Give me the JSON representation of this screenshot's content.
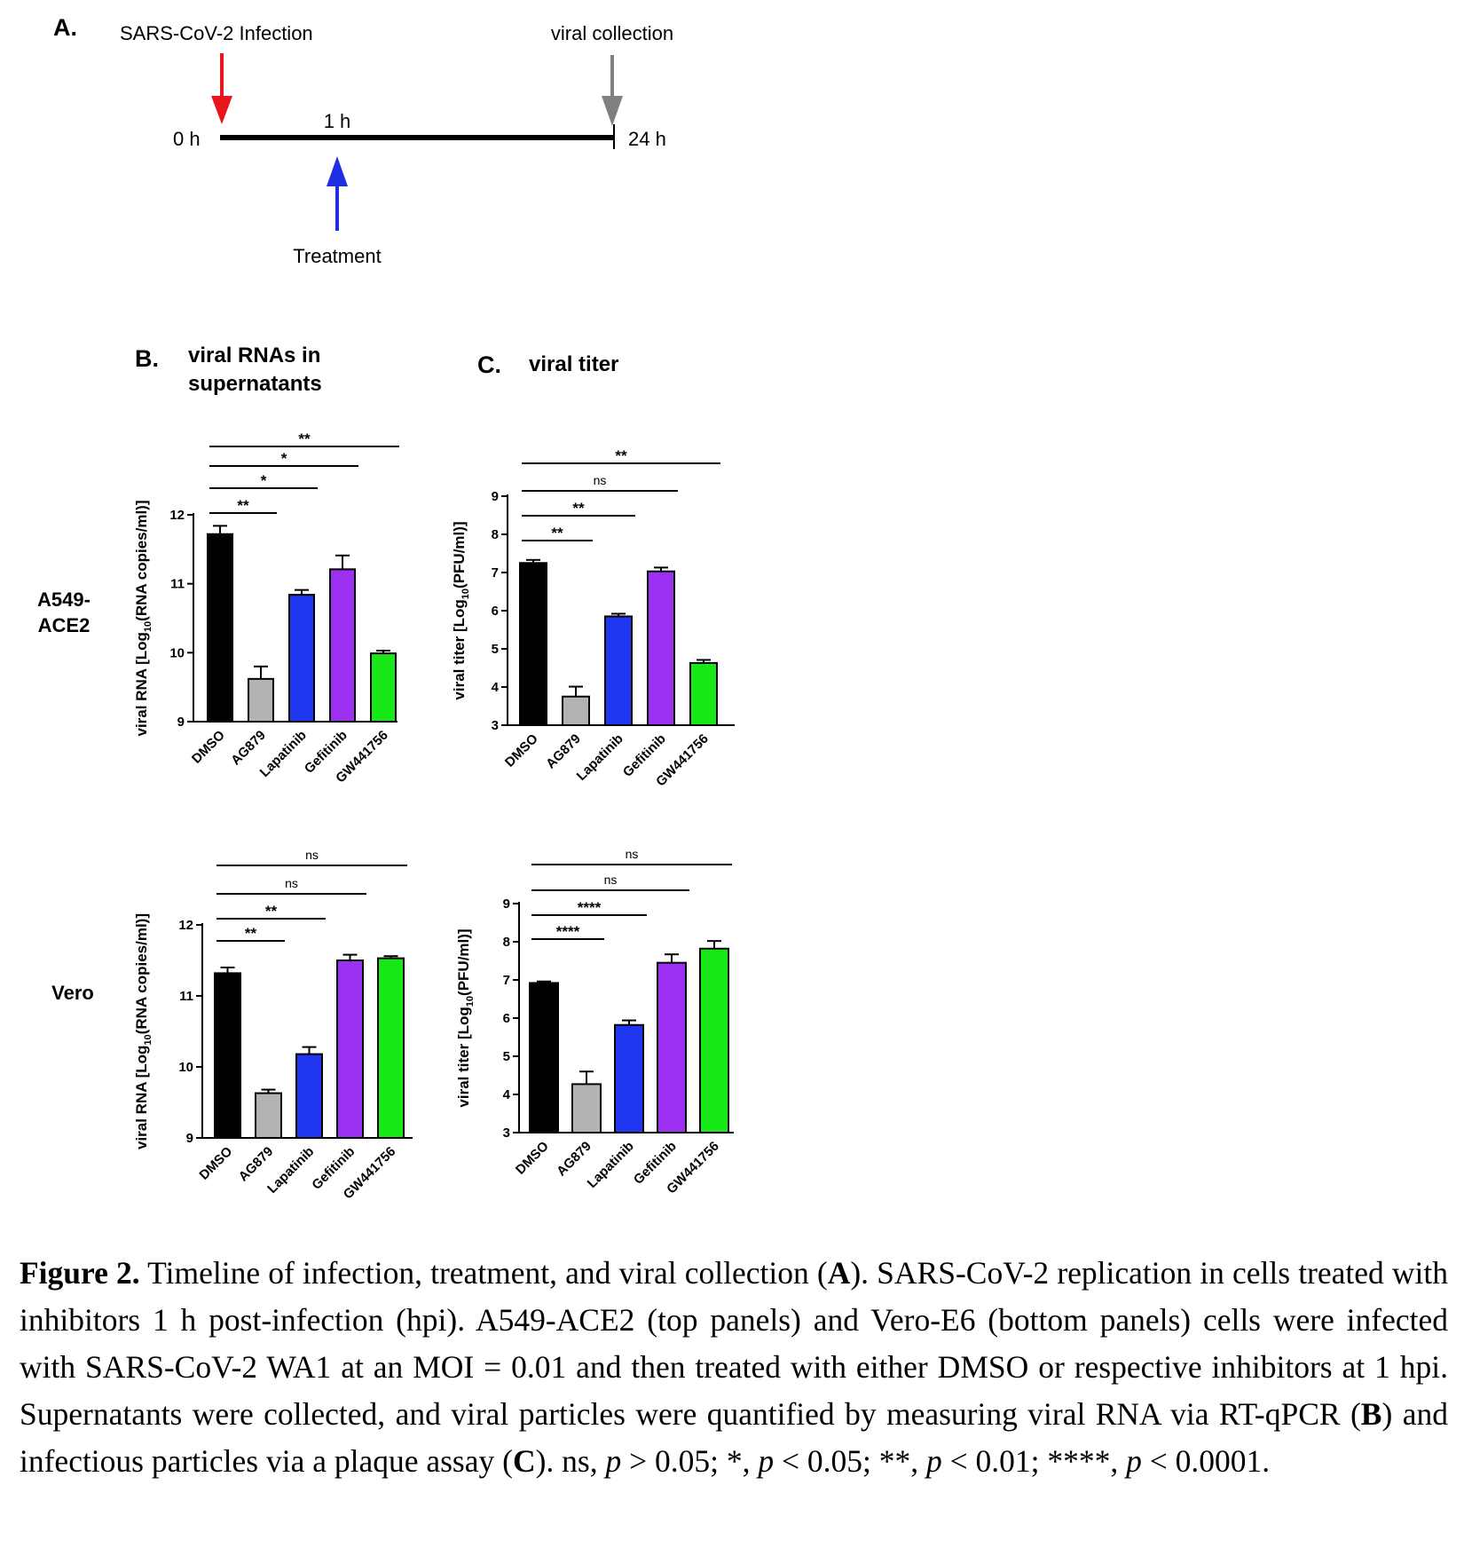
{
  "panel_a": {
    "label": "A.",
    "infection_label": "SARS-CoV-2 Infection",
    "collection_label": "viral collection",
    "treatment_label": "Treatment",
    "t0_label": "0 h",
    "t1_label": "1 h",
    "t24_label": "24 h",
    "colors": {
      "infection": "#e8161b",
      "treatment": "#1f2ee0",
      "collection": "#808080"
    }
  },
  "panel_b": {
    "label": "B.",
    "title_line1": "viral RNAs in",
    "title_line2": "supernatants"
  },
  "panel_c": {
    "label": "C.",
    "title": "viral titer"
  },
  "row_labels": {
    "top_line1": "A549-",
    "top_line2": "ACE2",
    "bottom": "Vero"
  },
  "caption": {
    "fig_label": "Figure 2.",
    "text_1": " Timeline of infection, treatment, and viral collection (",
    "ref_a": "A",
    "text_2": "). SARS-CoV-2 replication in cells treated with inhibitors 1 h post-infection (hpi). A549-ACE2 (top panels) and Vero-E6 (bottom panels) cells were infected with SARS-CoV-2 WA1 at an MOI = 0.01 and then treated with either DMSO or respective inhibitors at 1 hpi. Supernatants were collected, and viral particles were quantified by measuring viral RNA via RT-qPCR (",
    "ref_b": "B",
    "text_3": ") and infectious particles via a plaque assay (",
    "ref_c": "C",
    "text_4": "). ns, ",
    "p1": "p",
    "text_5": " > 0.05; *, ",
    "p2": "p",
    "text_6": " < 0.05; **, ",
    "p3": "p",
    "text_7": " < 0.01; ****, ",
    "p4": "p",
    "text_8": " < 0.0001."
  },
  "colors": [
    "#000000",
    "#b3b3b3",
    "#1f35f0",
    "#9b30f0",
    "#18e818"
  ],
  "chart_data": [
    {
      "id": "b_top",
      "type": "bar",
      "categories": [
        "DMSO",
        "AG879",
        "Lapatinib",
        "Gefitinib",
        "GW441756"
      ],
      "values": [
        11.72,
        9.62,
        10.84,
        11.21,
        9.99
      ],
      "errors": [
        0.12,
        0.18,
        0.07,
        0.2,
        0.04
      ],
      "ylabel_pre": "viral RNA [Log",
      "ylabel_sub": "10",
      "ylabel_post": "(RNA copies/ml)]",
      "ylim": [
        9,
        12
      ],
      "yticks": [
        "9",
        "10",
        "11",
        "12"
      ],
      "significance": [
        {
          "from": 0,
          "to": 1,
          "label": "**"
        },
        {
          "from": 0,
          "to": 2,
          "label": "*"
        },
        {
          "from": 0,
          "to": 3,
          "label": "*"
        },
        {
          "from": 0,
          "to": 4,
          "label": "**"
        }
      ]
    },
    {
      "id": "c_top",
      "type": "bar",
      "categories": [
        "DMSO",
        "AG879",
        "Lapatinib",
        "Gefitinib",
        "GW441756"
      ],
      "values": [
        7.25,
        3.75,
        5.85,
        7.03,
        4.63
      ],
      "errors": [
        0.08,
        0.26,
        0.07,
        0.1,
        0.08
      ],
      "ylabel_pre": "viral titer [Log",
      "ylabel_sub": "10",
      "ylabel_post": "(PFU/ml)]",
      "ylim": [
        3,
        9
      ],
      "yticks": [
        "3",
        "4",
        "5",
        "6",
        "7",
        "8",
        "9"
      ],
      "significance": [
        {
          "from": 0,
          "to": 1,
          "label": "**"
        },
        {
          "from": 0,
          "to": 2,
          "label": "**"
        },
        {
          "from": 0,
          "to": 3,
          "label": "ns"
        },
        {
          "from": 0,
          "to": 4,
          "label": "**"
        }
      ]
    },
    {
      "id": "b_bottom",
      "type": "bar",
      "categories": [
        "DMSO",
        "AG879",
        "Lapatinib",
        "Gefitinib",
        "GW441756"
      ],
      "values": [
        11.32,
        9.63,
        10.18,
        11.5,
        11.53
      ],
      "errors": [
        0.08,
        0.05,
        0.1,
        0.08,
        0.03
      ],
      "ylabel_pre": "viral RNA [Log",
      "ylabel_sub": "10",
      "ylabel_post": "(RNA copies/ml)]",
      "ylim": [
        9,
        12
      ],
      "yticks": [
        "9",
        "10",
        "11",
        "12"
      ],
      "significance": [
        {
          "from": 0,
          "to": 1,
          "label": "**"
        },
        {
          "from": 0,
          "to": 2,
          "label": "**"
        },
        {
          "from": 0,
          "to": 3,
          "label": "ns"
        },
        {
          "from": 0,
          "to": 4,
          "label": "ns"
        }
      ]
    },
    {
      "id": "c_bottom",
      "type": "bar",
      "categories": [
        "DMSO",
        "AG879",
        "Lapatinib",
        "Gefitinib",
        "GW441756"
      ],
      "values": [
        6.92,
        4.27,
        5.82,
        7.45,
        7.82
      ],
      "errors": [
        0.04,
        0.33,
        0.12,
        0.22,
        0.2
      ],
      "ylabel_pre": "viral titer [Log",
      "ylabel_sub": "10",
      "ylabel_post": "(PFU/ml)]",
      "ylim": [
        3,
        9
      ],
      "yticks": [
        "3",
        "4",
        "5",
        "6",
        "7",
        "8",
        "9"
      ],
      "significance": [
        {
          "from": 0,
          "to": 1,
          "label": "****"
        },
        {
          "from": 0,
          "to": 2,
          "label": "****"
        },
        {
          "from": 0,
          "to": 3,
          "label": "ns"
        },
        {
          "from": 0,
          "to": 4,
          "label": "ns"
        }
      ]
    }
  ]
}
